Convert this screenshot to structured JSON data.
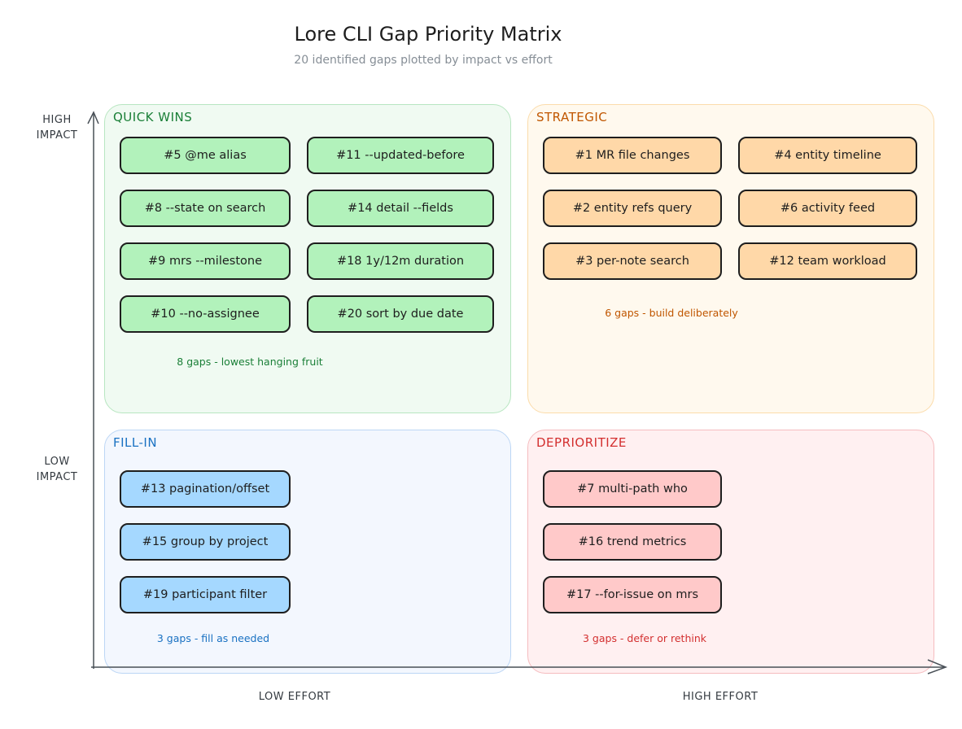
{
  "title": "Lore CLI Gap Priority Matrix",
  "subtitle": "20 identified gaps plotted by impact vs effort",
  "axes": {
    "high_impact": "HIGH\nIMPACT",
    "low_impact": "LOW\nIMPACT",
    "low_effort": "LOW EFFORT",
    "high_effort": "HIGH EFFORT"
  },
  "quadrants": {
    "quick_wins": {
      "label": "QUICK WINS",
      "color": "#1a7f37",
      "fill": "#b2f2bb",
      "bg": "#f0faf2",
      "border": "#b8e6c1",
      "items": [
        "#5 @me alias",
        "#11 --updated-before",
        "#8 --state on search",
        "#14 detail --fields",
        "#9 mrs --milestone",
        "#18 1y/12m duration",
        "#10 --no-assignee",
        "#20 sort by due date"
      ],
      "note": "8 gaps - lowest hanging fruit"
    },
    "strategic": {
      "label": "STRATEGIC",
      "color": "#c05600",
      "fill": "#ffd8a8",
      "bg": "#fff9ee",
      "border": "#fbdcab",
      "items": [
        "#1 MR file changes",
        "#4 entity timeline",
        "#2 entity refs query",
        "#6 activity feed",
        "#3 per-note search",
        "#12 team workload"
      ],
      "note": "6 gaps - build deliberately"
    },
    "fill_in": {
      "label": "FILL-IN",
      "color": "#1971c2",
      "fill": "#a5d8ff",
      "bg": "#f3f7fe",
      "border": "#bcd6f5",
      "items": [
        "#13 pagination/offset",
        "#15 group by project",
        "#19 participant filter"
      ],
      "note": "3 gaps - fill as needed"
    },
    "deprioritize": {
      "label": "DEPRIORITIZE",
      "color": "#d32f2f",
      "fill": "#ffc9c9",
      "bg": "#fff0f1",
      "border": "#f5bcbf",
      "items": [
        "#7 multi-path who",
        "#16 trend metrics",
        "#17 --for-issue on mrs"
      ],
      "note": "3 gaps - defer or rethink"
    }
  }
}
